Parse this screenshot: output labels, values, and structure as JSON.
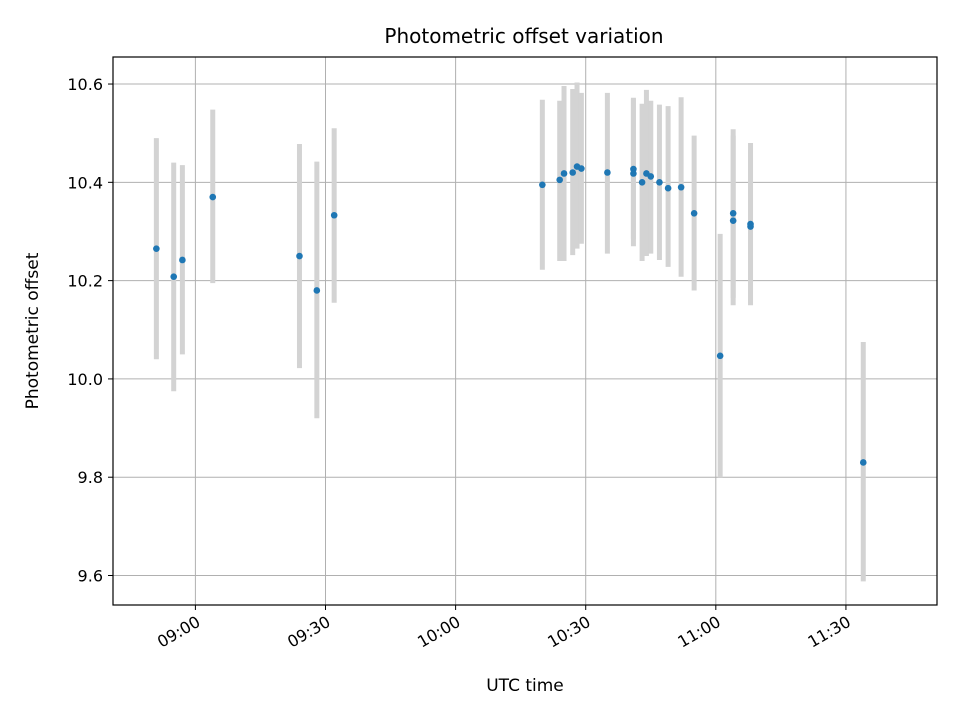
{
  "chart_data": {
    "type": "scatter",
    "title": "Photometric offset variation",
    "xlabel": "UTC time",
    "ylabel": "Photometric offset",
    "x_ticks": [
      "09:00",
      "09:30",
      "10:00",
      "10:30",
      "11:00",
      "11:30"
    ],
    "y_ticks": [
      "9.6",
      "9.8",
      "10.0",
      "10.2",
      "10.4",
      "10.6"
    ],
    "xlim": [
      "08:41",
      "11:51"
    ],
    "ylim": [
      9.54,
      10.655
    ],
    "grid": true,
    "marker_color": "#1f77b4",
    "errorbar_color": "#d3d3d3",
    "points": [
      {
        "x": "08:51",
        "y": 10.265,
        "low": 10.04,
        "high": 10.49
      },
      {
        "x": "08:55",
        "y": 10.208,
        "low": 9.975,
        "high": 10.44
      },
      {
        "x": "08:57",
        "y": 10.242,
        "low": 10.05,
        "high": 10.435
      },
      {
        "x": "09:04",
        "y": 10.37,
        "low": 10.195,
        "high": 10.548
      },
      {
        "x": "09:24",
        "y": 10.25,
        "low": 10.022,
        "high": 10.478
      },
      {
        "x": "09:28",
        "y": 10.18,
        "low": 9.92,
        "high": 10.442
      },
      {
        "x": "09:32",
        "y": 10.333,
        "low": 10.155,
        "high": 10.51
      },
      {
        "x": "10:20",
        "y": 10.395,
        "low": 10.222,
        "high": 10.568
      },
      {
        "x": "10:24",
        "y": 10.405,
        "low": 10.24,
        "high": 10.566
      },
      {
        "x": "10:25",
        "y": 10.418,
        "low": 10.24,
        "high": 10.596
      },
      {
        "x": "10:27",
        "y": 10.42,
        "low": 10.252,
        "high": 10.59
      },
      {
        "x": "10:28",
        "y": 10.432,
        "low": 10.265,
        "high": 10.603
      },
      {
        "x": "10:29",
        "y": 10.428,
        "low": 10.275,
        "high": 10.582
      },
      {
        "x": "10:35",
        "y": 10.42,
        "low": 10.255,
        "high": 10.582
      },
      {
        "x": "10:41",
        "y": 10.427,
        "low": 10.285,
        "high": 10.572
      },
      {
        "x": "10:41",
        "y": 10.418,
        "low": 10.27,
        "high": 10.57
      },
      {
        "x": "10:43",
        "y": 10.4,
        "low": 10.24,
        "high": 10.56
      },
      {
        "x": "10:44",
        "y": 10.418,
        "low": 10.25,
        "high": 10.588
      },
      {
        "x": "10:45",
        "y": 10.412,
        "low": 10.255,
        "high": 10.566
      },
      {
        "x": "10:47",
        "y": 10.4,
        "low": 10.242,
        "high": 10.558
      },
      {
        "x": "10:49",
        "y": 10.388,
        "low": 10.228,
        "high": 10.555
      },
      {
        "x": "10:52",
        "y": 10.39,
        "low": 10.208,
        "high": 10.573
      },
      {
        "x": "10:55",
        "y": 10.337,
        "low": 10.18,
        "high": 10.495
      },
      {
        "x": "11:01",
        "y": 10.047,
        "low": 9.8,
        "high": 10.295
      },
      {
        "x": "11:04",
        "y": 10.337,
        "low": 10.165,
        "high": 10.508
      },
      {
        "x": "11:04",
        "y": 10.322,
        "low": 10.15,
        "high": 10.495
      },
      {
        "x": "11:08",
        "y": 10.315,
        "low": 10.15,
        "high": 10.48
      },
      {
        "x": "11:08",
        "y": 10.31,
        "low": 10.155,
        "high": 10.465
      },
      {
        "x": "11:34",
        "y": 9.83,
        "low": 9.588,
        "high": 10.075
      }
    ]
  }
}
